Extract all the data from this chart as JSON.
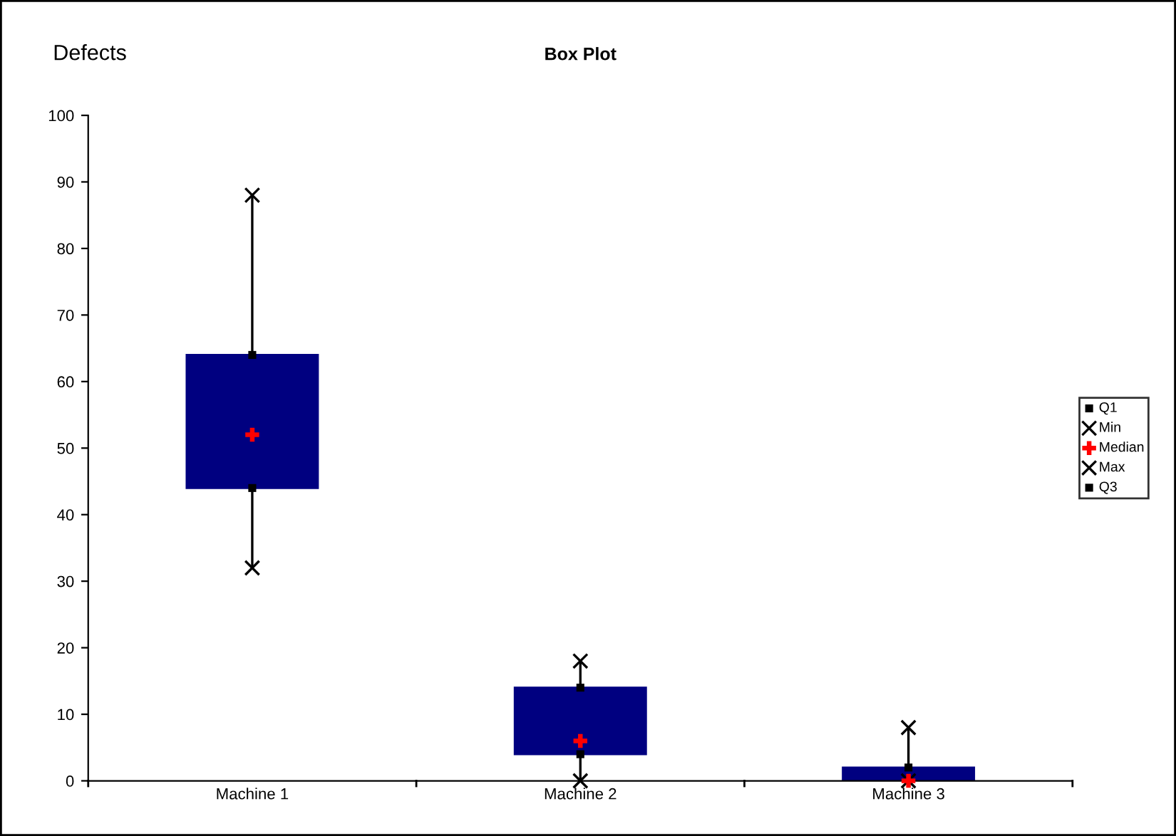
{
  "chart_data": {
    "type": "box",
    "title": "Box Plot",
    "ylabel": "Defects",
    "categories": [
      "Machine 1",
      "Machine 2",
      "Machine 3"
    ],
    "boxes": [
      {
        "low": 32,
        "q1": 44,
        "median": 52,
        "q3": 64,
        "high": 88
      },
      {
        "low": 0,
        "q1": 4,
        "median": 6,
        "q3": 14,
        "high": 18
      },
      {
        "low": 0,
        "q1": 0,
        "median": 0,
        "q3": 2,
        "high": 8
      }
    ],
    "color": "#000080",
    "series": [
      {
        "name": "Q1",
        "type": "scatter",
        "marker": "square",
        "color": "#000000",
        "values": [
          44,
          4,
          null
        ]
      },
      {
        "name": "Min",
        "type": "scatter",
        "marker": "x",
        "color": "#000000",
        "values": [
          32,
          0,
          0
        ]
      },
      {
        "name": "Median",
        "type": "scatter",
        "marker": "cross",
        "color": "#ff0000",
        "values": [
          52,
          6,
          0
        ]
      },
      {
        "name": "Max",
        "type": "scatter",
        "marker": "x",
        "color": "#000000",
        "values": [
          88,
          18,
          8
        ]
      },
      {
        "name": "Q3",
        "type": "scatter",
        "marker": "square",
        "color": "#000000",
        "values": [
          64,
          14,
          2
        ]
      }
    ],
    "ylim": [
      0,
      100
    ],
    "yticks": [
      0,
      10,
      20,
      30,
      40,
      50,
      60,
      70,
      80,
      90,
      100
    ],
    "grid": false,
    "legend": "right"
  }
}
